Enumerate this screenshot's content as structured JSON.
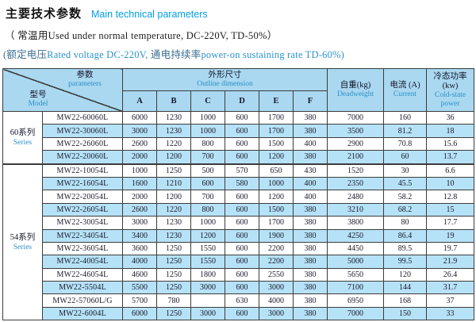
{
  "header": {
    "title_zh": "主要技术参数",
    "title_en": "Main technical parameters",
    "note1": "（ 常温用Used under normal temperature,  DC-220V, TD-50%）",
    "note2": {
      "zh1": "(额定电压",
      "en1": "Rated voltage DC-220V, ",
      "zh2": "通电持续率",
      "en2": "power-on sustaining rate TD-60%)"
    }
  },
  "table": {
    "corner": {
      "param_zh": "参数",
      "param_en": "parameters",
      "model_zh": "型号",
      "model_en": "Model"
    },
    "outline_zh": "外形尺寸",
    "outline_en": "Outline dimension",
    "dims": [
      "A",
      "B",
      "C",
      "D",
      "E",
      "F"
    ],
    "deadweight_zh": "自重(kg)",
    "deadweight_en": "Deadweight",
    "current_zh": "电流 (A)",
    "current_en": "Current",
    "power_zh": "冷态功率",
    "power_unit": "(kw)",
    "power_en": "Cold-state power",
    "groups": [
      {
        "label_zh": "60系列",
        "label_en": "Series",
        "rows": [
          [
            "MW22-60060L",
            "6000",
            "1230",
            "1000",
            "600",
            "1700",
            "380",
            "7000",
            "160",
            "36"
          ],
          [
            "MW22-30060L",
            "3000",
            "1230",
            "1000",
            "600",
            "1700",
            "380",
            "3500",
            "81.2",
            "18"
          ],
          [
            "MW22-26060L",
            "2600",
            "1220",
            "800",
            "600",
            "1500",
            "400",
            "2900",
            "70.8",
            "15.6"
          ],
          [
            "MW22-20060L",
            "2000",
            "1200",
            "700",
            "600",
            "1200",
            "380",
            "2100",
            "60",
            "13.7"
          ]
        ]
      },
      {
        "label_zh": "54系列",
        "label_en": "Series",
        "rows": [
          [
            "MW22-10054L",
            "1000",
            "1250",
            "500",
            "570",
            "650",
            "430",
            "1520",
            "30",
            "6.6"
          ],
          [
            "MW22-16054L",
            "1600",
            "1210",
            "600",
            "580",
            "1000",
            "400",
            "2350",
            "45.5",
            "10"
          ],
          [
            "MW22-20054L",
            "2000",
            "1200",
            "700",
            "600",
            "1200",
            "400",
            "2480",
            "58.2",
            "12.8"
          ],
          [
            "MW22-26054L",
            "2600",
            "1220",
            "800",
            "600",
            "1500",
            "380",
            "3210",
            "68.2",
            "15"
          ],
          [
            "MW22-30054L",
            "3000",
            "1230",
            "1000",
            "600",
            "1700",
            "380",
            "3800",
            "80",
            "17.7"
          ],
          [
            "MW22-34054L",
            "3400",
            "1230",
            "1200",
            "600",
            "1900",
            "380",
            "4250",
            "86.4",
            "19"
          ],
          [
            "MW22-36054L",
            "3600",
            "1250",
            "1550",
            "600",
            "2200",
            "380",
            "4450",
            "89.5",
            "19.7"
          ],
          [
            "MW22-40054L",
            "4000",
            "1250",
            "1550",
            "600",
            "2200",
            "380",
            "5000",
            "99.5",
            "21.9"
          ],
          [
            "MW22-46054L",
            "4600",
            "1250",
            "1800",
            "600",
            "2550",
            "380",
            "5650",
            "120",
            "26.4"
          ],
          [
            "MW22-5504L",
            "5500",
            "1250",
            "3000",
            "600",
            "3000",
            "380",
            "7100",
            "144",
            "31.7"
          ],
          [
            "MW22-57060L/G",
            "5700",
            "780",
            "",
            "630",
            "4000",
            "380",
            "6950",
            "168",
            "37"
          ],
          [
            "MW22-6004L",
            "6000",
            "1250",
            "3000",
            "600",
            "3000",
            "380",
            "7000",
            "150",
            "33"
          ]
        ]
      }
    ]
  }
}
